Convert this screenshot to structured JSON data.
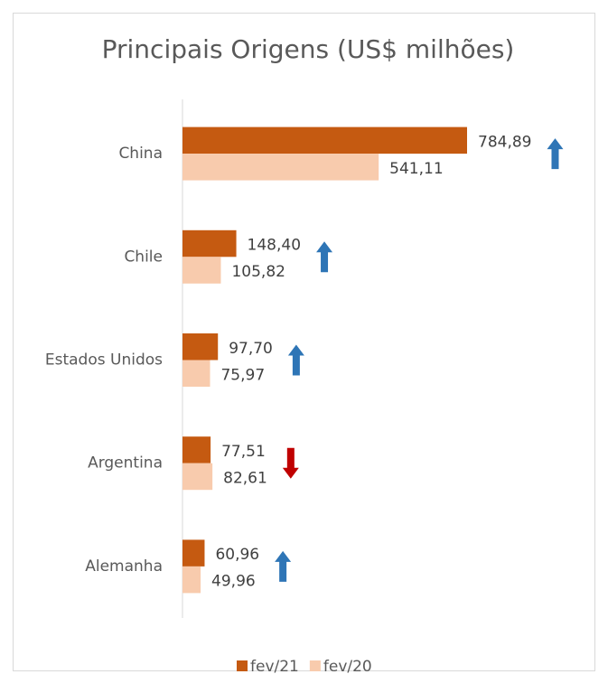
{
  "chart_data": {
    "type": "bar",
    "orientation": "horizontal",
    "title": "Principais Origens (US$ milhões)",
    "categories": [
      "China",
      "Chile",
      "Estados Unidos",
      "Argentina",
      "Alemanha"
    ],
    "series": [
      {
        "name": "fev/21",
        "color": "#c55a11",
        "values": [
          784.89,
          148.4,
          97.7,
          77.51,
          60.96
        ],
        "value_labels": [
          "784,89",
          "148,40",
          "97,70",
          "77,51",
          "60,96"
        ]
      },
      {
        "name": "fev/20",
        "color": "#f8cbad",
        "values": [
          541.11,
          105.82,
          75.97,
          82.61,
          49.96
        ],
        "value_labels": [
          "541,11",
          "105,82",
          "75,97",
          "82,61",
          "49,96"
        ]
      }
    ],
    "legend": "bottom"
  }
}
